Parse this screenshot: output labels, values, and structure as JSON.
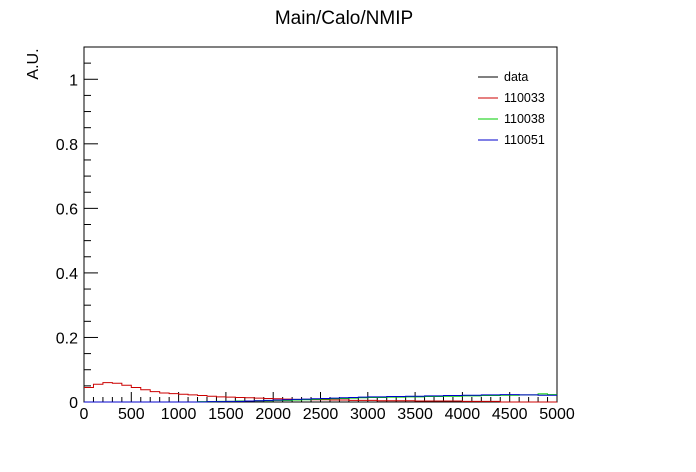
{
  "chart_data": {
    "type": "line",
    "title": "Main/Calo/NMIP",
    "xlabel": "",
    "ylabel": "A.U.",
    "xlim": [
      0,
      5000
    ],
    "ylim": [
      0,
      1.1
    ],
    "x_ticks": [
      0,
      500,
      1000,
      1500,
      2000,
      2500,
      3000,
      3500,
      4000,
      4500,
      5000
    ],
    "y_ticks": [
      0,
      0.2,
      0.4,
      0.6,
      0.8,
      1
    ],
    "x_tick_labels": [
      "0",
      "500",
      "1000",
      "1500",
      "2000",
      "2500",
      "3000",
      "3500",
      "4000",
      "4500",
      "5000"
    ],
    "y_tick_labels": [
      "0",
      "0.2",
      "0.4",
      "0.6",
      "0.8",
      "1"
    ],
    "grid": false,
    "legend_position": "top-right",
    "bin_width": 100,
    "series": [
      {
        "name": "data",
        "color": "#000000",
        "values": [
          0,
          0,
          0,
          0,
          0,
          0,
          0,
          0,
          0,
          0,
          0,
          0,
          0,
          0,
          0,
          0,
          0,
          0,
          0,
          0,
          0,
          0,
          0,
          0,
          0,
          0,
          0,
          0,
          0,
          0,
          0,
          0,
          0,
          0,
          0,
          0,
          0,
          0,
          0,
          0,
          0,
          0,
          0,
          0,
          0,
          0,
          0,
          0,
          0,
          0
        ]
      },
      {
        "name": "110033",
        "color": "#cc0000",
        "values": [
          0.045,
          0.055,
          0.06,
          0.058,
          0.052,
          0.045,
          0.038,
          0.032,
          0.028,
          0.026,
          0.024,
          0.022,
          0.02,
          0.018,
          0.016,
          0.015,
          0.014,
          0.013,
          0.012,
          0.011,
          0.01,
          0.009,
          0.008,
          0.008,
          0.007,
          0.007,
          0.006,
          0.006,
          0.005,
          0.005,
          0.005,
          0.004,
          0.004,
          0.004,
          0.004,
          0.003,
          0.003,
          0.003,
          0.003,
          0.003,
          0.002,
          0.002,
          0.002,
          0.002,
          0,
          0,
          0,
          0,
          0,
          0
        ]
      },
      {
        "name": "110038",
        "color": "#00cc00",
        "values": [
          0,
          0,
          0,
          0,
          0,
          0,
          0,
          0,
          0,
          0,
          0,
          0,
          0.001,
          0.001,
          0.002,
          0.002,
          0.003,
          0.003,
          0.004,
          0.004,
          0.005,
          0.005,
          0.006,
          0.007,
          0.008,
          0.009,
          0.01,
          0.011,
          0.012,
          0.013,
          0.014,
          0.014,
          0.015,
          0.015,
          0.016,
          0.016,
          0.017,
          0.017,
          0.018,
          0.018,
          0.019,
          0.019,
          0.02,
          0.02,
          0.021,
          0.021,
          0.022,
          0.022,
          0.025,
          0.023
        ]
      },
      {
        "name": "110051",
        "color": "#0000cc",
        "values": [
          0,
          0,
          0,
          0,
          0,
          0,
          0,
          0,
          0,
          0,
          0,
          0,
          0,
          0.001,
          0.001,
          0.002,
          0.002,
          0.003,
          0.004,
          0.005,
          0.006,
          0.007,
          0.008,
          0.009,
          0.01,
          0.011,
          0.012,
          0.013,
          0.014,
          0.015,
          0.016,
          0.016,
          0.017,
          0.017,
          0.018,
          0.018,
          0.019,
          0.019,
          0.02,
          0.02,
          0.021,
          0.021,
          0.022,
          0.022,
          0.023,
          0.023,
          0.022,
          0.022,
          0.021,
          0.021
        ]
      }
    ]
  }
}
